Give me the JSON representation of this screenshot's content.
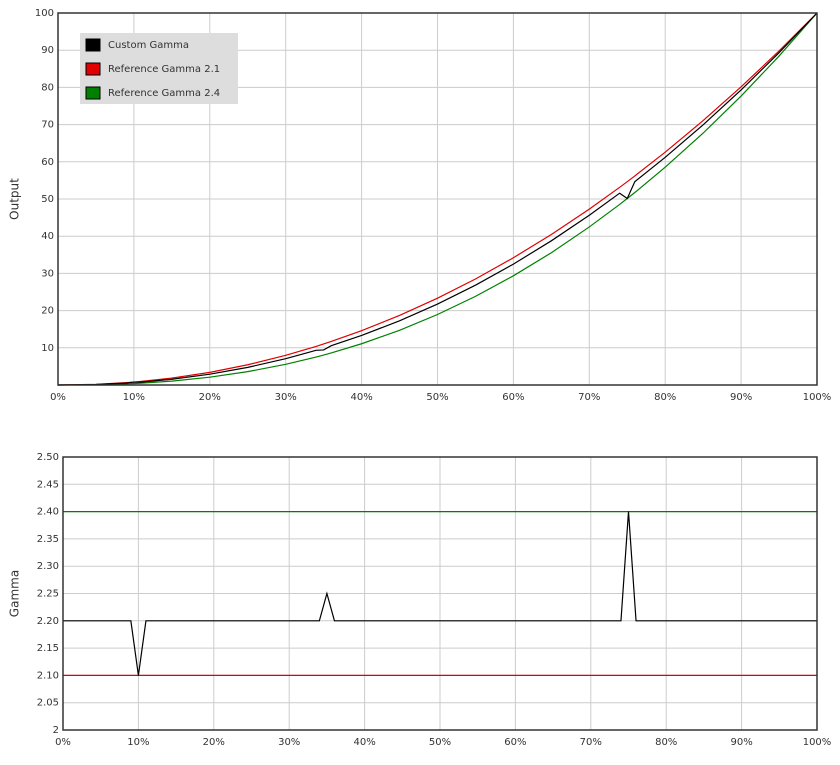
{
  "chart_data": [
    {
      "type": "line",
      "y_label": "Output",
      "legend": "upper left",
      "grid": true,
      "x": [
        0,
        5,
        9,
        10,
        11,
        15,
        20,
        25,
        30,
        34,
        35,
        36,
        40,
        45,
        50,
        55,
        60,
        65,
        70,
        74,
        75,
        76,
        80,
        85,
        90,
        95,
        100
      ],
      "xlim": [
        0,
        100
      ],
      "xticks": [
        {
          "value": 0,
          "label": "0%"
        },
        {
          "value": 10,
          "label": "10%"
        },
        {
          "value": 20,
          "label": "20%"
        },
        {
          "value": 30,
          "label": "30%"
        },
        {
          "value": 40,
          "label": "40%"
        },
        {
          "value": 50,
          "label": "50%"
        },
        {
          "value": 60,
          "label": "60%"
        },
        {
          "value": 70,
          "label": "70%"
        },
        {
          "value": 80,
          "label": "80%"
        },
        {
          "value": 90,
          "label": "90%"
        },
        {
          "value": 100,
          "label": "100%"
        }
      ],
      "ylim": [
        0,
        100
      ],
      "yticks": [
        10,
        20,
        30,
        40,
        50,
        60,
        70,
        80,
        90,
        100
      ],
      "series": [
        {
          "name": "Custom Gamma",
          "color": "#000000",
          "values": [
            0,
            0.14,
            0.5,
            0.79,
            0.78,
            1.54,
            2.9,
            4.74,
            7.07,
            9.32,
            9.42,
            10.57,
            13.32,
            17.26,
            21.76,
            26.84,
            32.5,
            38.76,
            45.63,
            51.56,
            50.14,
            54.67,
            61.21,
            69.94,
            79.31,
            89.33,
            100
          ]
        },
        {
          "name": "Reference Gamma 2.1",
          "color": "#e00000",
          "values": [
            0,
            0.19,
            0.64,
            0.79,
            0.97,
            1.86,
            3.4,
            5.44,
            7.98,
            10.38,
            11.03,
            11.7,
            14.6,
            18.69,
            23.33,
            28.49,
            34.21,
            40.47,
            47.29,
            53.14,
            54.65,
            56.2,
            62.59,
            71.08,
            80.15,
            89.79,
            100
          ]
        },
        {
          "name": "Reference Gamma 2.4",
          "color": "#008000",
          "values": [
            0,
            0.08,
            0.31,
            0.4,
            0.5,
            1.05,
            2.1,
            3.59,
            5.56,
            7.51,
            8.05,
            8.61,
            11.09,
            14.71,
            18.95,
            23.82,
            29.35,
            35.56,
            42.49,
            48.54,
            50.14,
            51.75,
            58.54,
            67.71,
            77.66,
            88.42,
            100
          ]
        }
      ]
    },
    {
      "type": "line",
      "y_label": "Gamma",
      "grid": true,
      "x": [
        0,
        9,
        10,
        11,
        34,
        35,
        36,
        74,
        75,
        76,
        100
      ],
      "xlim": [
        0,
        100
      ],
      "xticks": [
        {
          "value": 0,
          "label": "0%"
        },
        {
          "value": 10,
          "label": "10%"
        },
        {
          "value": 20,
          "label": "20%"
        },
        {
          "value": 30,
          "label": "30%"
        },
        {
          "value": 40,
          "label": "40%"
        },
        {
          "value": 50,
          "label": "50%"
        },
        {
          "value": 60,
          "label": "60%"
        },
        {
          "value": 70,
          "label": "70%"
        },
        {
          "value": 80,
          "label": "80%"
        },
        {
          "value": 90,
          "label": "90%"
        },
        {
          "value": 100,
          "label": "100%"
        }
      ],
      "ylim": [
        2,
        2.5
      ],
      "yticks": [
        2,
        2.05,
        {
          "value": 2.1,
          "label": "2.10"
        },
        2.15,
        {
          "value": 2.2,
          "label": "2.20"
        },
        2.25,
        {
          "value": 2.3,
          "label": "2.30"
        },
        2.35,
        {
          "value": 2.4,
          "label": "2.40"
        },
        2.45,
        {
          "value": 2.5,
          "label": "2.50"
        }
      ],
      "series": [
        {
          "name": "Custom Gamma",
          "color": "#000000",
          "values": [
            2.2,
            2.2,
            2.1,
            2.2,
            2.2,
            2.25,
            2.2,
            2.2,
            2.4,
            2.2,
            2.2
          ]
        },
        {
          "name": "Reference Gamma 2.1",
          "color": "#e00000",
          "values": [
            2.1,
            2.1,
            2.1,
            2.1,
            2.1,
            2.1,
            2.1,
            2.1,
            2.1,
            2.1,
            2.1
          ]
        },
        {
          "name": "Reference Gamma 2.4",
          "color": "#008000",
          "values": [
            2.4,
            2.4,
            2.4,
            2.4,
            2.4,
            2.4,
            2.4,
            2.4,
            2.4,
            2.4,
            2.4
          ]
        }
      ]
    }
  ]
}
